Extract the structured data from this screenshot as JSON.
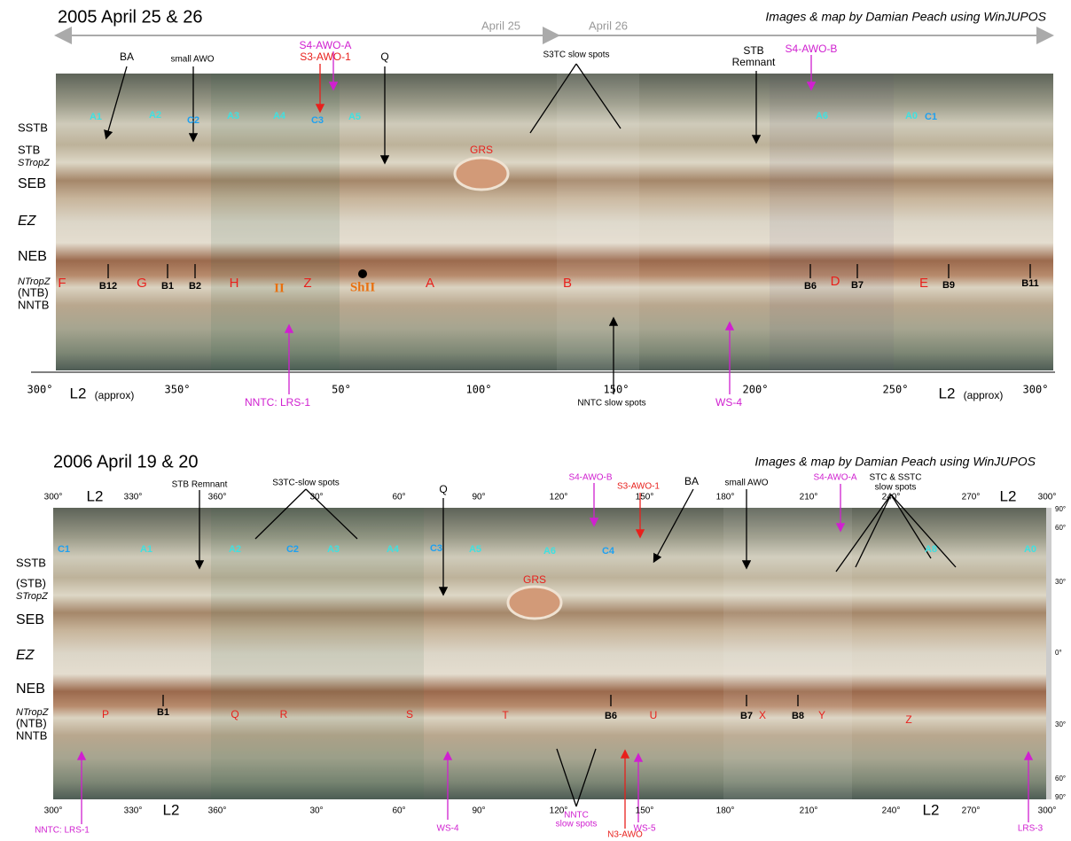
{
  "panel_2005": {
    "title": "2005 April 25 & 26",
    "credit": "Images & map by Damian Peach using WinJUPOS",
    "dates": [
      "April 25",
      "April 26"
    ],
    "belts": [
      "SSTB",
      "STB",
      "STropZ",
      "SEB",
      "EZ",
      "NEB",
      "NTropZ",
      "(NTB)",
      "NNTB"
    ],
    "longitudes": [
      "300°",
      "350°",
      "50°",
      "100°",
      "150°",
      "200°",
      "250°",
      "300°"
    ],
    "axis_name": "L2",
    "axis_note": "(approx)",
    "features": [
      "BA",
      "small AWO",
      "S4-AWO-A",
      "S3-AWO-1",
      "Q",
      "S3TC slow spots",
      "STB",
      "Remnant",
      "S4-AWO-B",
      "GRS",
      "NNTC:  LRS-1",
      "NNTC slow spots",
      "WS-4"
    ],
    "spots": [
      "A1",
      "A2",
      "C2",
      "A3",
      "A4",
      "C3",
      "A5",
      "A6",
      "A0",
      "C1"
    ],
    "row": [
      "F",
      "B12",
      "G",
      "B1",
      "B2",
      "H",
      "II",
      "Z",
      "ShII",
      "A",
      "B",
      "B6",
      "D",
      "B7",
      "E",
      "B9",
      "B11"
    ]
  },
  "panel_2006": {
    "title": "2006 April 19 & 20",
    "credit": "Images & map by Damian Peach using WinJUPOS",
    "belts": [
      "SSTB",
      "(STB)",
      "STropZ",
      "SEB",
      "EZ",
      "NEB",
      "NTropZ",
      "(NTB)",
      "NNTB"
    ],
    "longitudes": [
      "300°",
      "330°",
      "360°",
      "30°",
      "60°",
      "90°",
      "120°",
      "150°",
      "180°",
      "210°",
      "240°",
      "270°",
      "300°"
    ],
    "axis_name": "L2",
    "latitudes": [
      "90°",
      "60°",
      "30°",
      "0°",
      "30°",
      "60°",
      "90°"
    ],
    "features": [
      "STB Remnant",
      "S3TC-slow spots",
      "Q",
      "S4-AWO-B",
      "S3-AWO-1",
      "BA",
      "small AWO",
      "S4-AWO-A",
      "STC & SSTC",
      "slow spots",
      "GRS",
      "NNTC: LRS-1",
      "WS-4",
      "NNTC",
      "slow spots",
      "N3-AWO",
      "WS-5",
      "LRS-3"
    ],
    "spots": [
      "C1",
      "A1",
      "A2",
      "C2",
      "A3",
      "A4",
      "C3",
      "A5",
      "A6",
      "C4",
      "A8",
      "A0"
    ],
    "row": [
      "P",
      "B1",
      "Q",
      "R",
      "S",
      "T",
      "B6",
      "U",
      "B7",
      "X",
      "B8",
      "Y",
      "Z"
    ]
  }
}
